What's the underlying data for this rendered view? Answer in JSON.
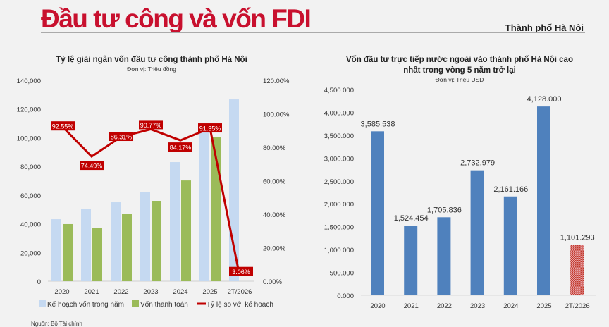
{
  "header": {
    "title": "Đầu tư công và vốn FDI",
    "subtitle": "Thành phố Hà Nội"
  },
  "source": "Nguồn: Bộ Tài chính",
  "colors": {
    "title": "#c8102e",
    "plan": "#c5d9f1",
    "paid": "#9bbb59",
    "ratio": "#c00000",
    "fdi": "#4f81bd",
    "fdi_partial": "#d9737b"
  },
  "chart_data": [
    {
      "type": "bar+line",
      "title": "Tỷ lệ giải ngân vốn đầu tư công thành phố Hà Nội",
      "subtitle": "Đơn vị: Triệu đồng",
      "categories": [
        "2020",
        "2021",
        "2022",
        "2023",
        "2024",
        "2025",
        "2T/2026"
      ],
      "ylim": [
        0,
        140000
      ],
      "y_ticks": [
        "0",
        "20,000",
        "40,000",
        "60,000",
        "80,000",
        "100,000",
        "120,000",
        "140,000"
      ],
      "y2lim": [
        0,
        120
      ],
      "y2_ticks": [
        "0.00%",
        "20.00%",
        "40.00%",
        "60.00%",
        "80.00%",
        "100.00%",
        "120.00%"
      ],
      "legend_position": "bottom",
      "series": [
        {
          "name": "Kế hoạch vốn trong năm",
          "type": "bar",
          "values": [
            43200,
            50100,
            55000,
            61900,
            83000,
            104000,
            126700
          ]
        },
        {
          "name": "Vốn thanh toán",
          "type": "bar",
          "values": [
            39800,
            37300,
            47100,
            56000,
            70200,
            100200,
            null
          ]
        },
        {
          "name": "Tỷ lệ so với kế hoạch",
          "type": "line",
          "axis": "right",
          "values": [
            92.55,
            74.49,
            86.31,
            90.77,
            84.17,
            91.35,
            3.06
          ],
          "labels": [
            "92.55%",
            "74.49%",
            "86.31%",
            "90.77%",
            "84.17%",
            "91.35%",
            "3.06%"
          ]
        }
      ]
    },
    {
      "type": "bar",
      "title": "Vốn đầu tư trực tiếp nước ngoài vào thành phố Hà Nội cao nhất trong vòng 5 năm trở lại",
      "subtitle": "Đơn vị: Triệu USD",
      "categories": [
        "2020",
        "2021",
        "2022",
        "2023",
        "2024",
        "2025",
        "2T/2026"
      ],
      "values": [
        3585.538,
        1524.454,
        1705.836,
        2732.979,
        2161.166,
        4128.0,
        1101.293
      ],
      "labels": [
        "3,585.538",
        "1,524.454",
        "1,705.836",
        "2,732.979",
        "2,161.166",
        "4,128.000",
        "1,101.293"
      ],
      "ylim": [
        0,
        4500
      ],
      "y_ticks": [
        "0.000",
        "500.000",
        "1,000.000",
        "1,500.000",
        "2,000.000",
        "2,500.000",
        "3,000.000",
        "3,500.000",
        "4,000.000",
        "4,500.000"
      ]
    }
  ]
}
